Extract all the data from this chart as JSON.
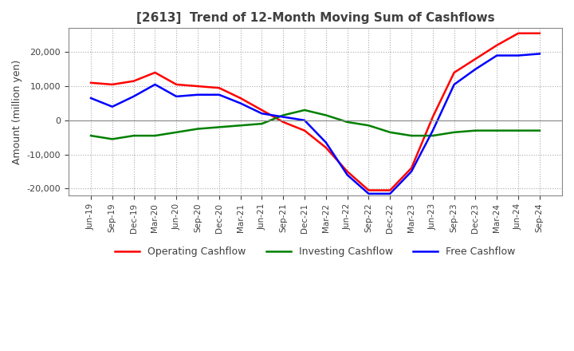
{
  "title": "[2613]  Trend of 12-Month Moving Sum of Cashflows",
  "ylabel": "Amount (million yen)",
  "ylim": [
    -22000,
    27000
  ],
  "yticks": [
    -20000,
    -10000,
    0,
    10000,
    20000
  ],
  "x_labels": [
    "Jun-19",
    "Sep-19",
    "Dec-19",
    "Mar-20",
    "Jun-20",
    "Sep-20",
    "Dec-20",
    "Mar-21",
    "Jun-21",
    "Sep-21",
    "Dec-21",
    "Mar-22",
    "Jun-22",
    "Sep-22",
    "Dec-22",
    "Mar-23",
    "Jun-23",
    "Sep-23",
    "Dec-23",
    "Mar-24",
    "Jun-24",
    "Sep-24"
  ],
  "operating_cashflow": [
    11000,
    10500,
    11500,
    14000,
    10500,
    10000,
    9500,
    6500,
    3000,
    -500,
    -3000,
    -8000,
    -15000,
    -20500,
    -20500,
    -14000,
    1000,
    14000,
    18000,
    22000,
    25500,
    25500
  ],
  "investing_cashflow": [
    -4500,
    -5500,
    -4500,
    -4500,
    -3500,
    -2500,
    -2000,
    -1500,
    -1000,
    1500,
    3000,
    1500,
    -500,
    -1500,
    -3500,
    -4500,
    -4500,
    -3500,
    -3000,
    -3000,
    -3000,
    -3000
  ],
  "free_cashflow": [
    6500,
    4000,
    7000,
    10500,
    7000,
    7500,
    7500,
    5000,
    2000,
    1000,
    0,
    -6500,
    -16000,
    -21500,
    -21500,
    -15000,
    -3000,
    10500,
    15000,
    19000,
    19000,
    19500
  ],
  "line_colors": {
    "operating": "#ff0000",
    "investing": "#008000",
    "free": "#0000ff"
  },
  "legend_labels": [
    "Operating Cashflow",
    "Investing Cashflow",
    "Free Cashflow"
  ],
  "background_color": "#ffffff",
  "grid_color": "#aaaaaa",
  "title_color": "#404040"
}
